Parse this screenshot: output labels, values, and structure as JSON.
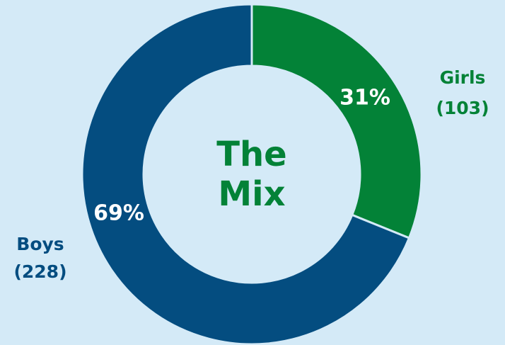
{
  "colors": {
    "background": "#d4eaf7",
    "boys": "#044d80",
    "girls": "#038237",
    "title": "#038237",
    "separator": "#d4eaf7"
  },
  "center_title": {
    "line1": "The",
    "line2": "Mix"
  },
  "chart_data": {
    "type": "pie",
    "style": "donut",
    "title": "The Mix",
    "series": [
      {
        "name": "Girls",
        "count_label": "(103)",
        "value": 103,
        "percent_label": "31%",
        "color": "#038237"
      },
      {
        "name": "Boys",
        "count_label": "(228)",
        "value": 228,
        "percent_label": "69%",
        "color": "#044d80"
      }
    ],
    "start_angle": "top",
    "direction": "clockwise",
    "legend": "none"
  }
}
